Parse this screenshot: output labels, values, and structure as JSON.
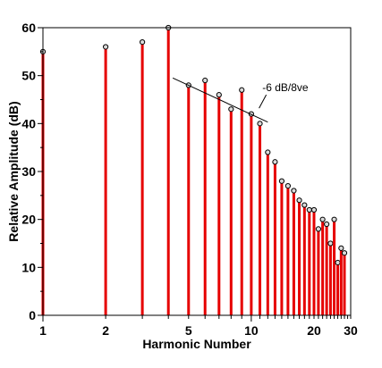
{
  "chart_data": {
    "type": "stem",
    "xlabel": "Harmonic Number",
    "ylabel": "Relative Amplitude (dB)",
    "xscale": "log",
    "xlim": [
      1,
      30
    ],
    "ylim": [
      0,
      60
    ],
    "x_ticks": [
      1,
      2,
      5,
      10,
      20,
      30
    ],
    "x_tick_labels": [
      "1",
      "2",
      "5",
      "10",
      "20",
      "30"
    ],
    "y_ticks": [
      0,
      10,
      20,
      30,
      40,
      50,
      60
    ],
    "y_tick_labels": [
      "0",
      "10",
      "20",
      "30",
      "40",
      "50",
      "60"
    ],
    "grid": false,
    "series": [
      {
        "x": [
          1,
          2,
          3,
          4,
          5,
          6,
          7,
          8,
          9,
          10,
          11,
          12,
          13,
          14,
          15,
          16,
          17,
          18,
          19,
          20,
          21,
          22,
          23,
          24,
          25,
          26,
          27,
          28
        ],
        "y": [
          55,
          56,
          57,
          60,
          48,
          49,
          46,
          43,
          47,
          42,
          40,
          34,
          32,
          28,
          27,
          26,
          24,
          23,
          22,
          22,
          18,
          20,
          19,
          15,
          20,
          11,
          14,
          13
        ],
        "color": "#e60000"
      }
    ],
    "annotation": {
      "text": "-6 dB/8ve",
      "line_from": [
        4.2,
        49.5
      ],
      "line_to": [
        12,
        40.3
      ]
    }
  }
}
